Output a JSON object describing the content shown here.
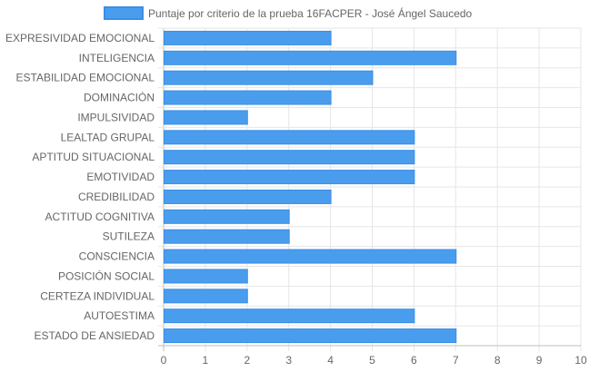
{
  "chart_data": {
    "type": "bar",
    "orientation": "horizontal",
    "legend": {
      "position": "top",
      "label": "Puntaje por criterio de la prueba 16FACPER - José Ángel Saucedo"
    },
    "categories": [
      "EXPRESIVIDAD EMOCIONAL",
      "INTELIGENCIA",
      "ESTABILIDAD EMOCIONAL",
      "DOMINACIÓN",
      "IMPULSIVIDAD",
      "LEALTAD GRUPAL",
      "APTITUD SITUACIONAL",
      "EMOTIVIDAD",
      "CREDIBILIDAD",
      "ACTITUD COGNITIVA",
      "SUTILEZA",
      "CONSCIENCIA",
      "POSICIÓN SOCIAL",
      "CERTEZA INDIVIDUAL",
      "AUTOESTIMA",
      "ESTADO DE ANSIEDAD"
    ],
    "series": [
      {
        "name": "Puntaje por criterio de la prueba 16FACPER - José Ángel Saucedo",
        "values": [
          4,
          7,
          5,
          4,
          2,
          6,
          6,
          6,
          4,
          3,
          3,
          7,
          2,
          2,
          6,
          7
        ]
      }
    ],
    "xlim": [
      0,
      10
    ],
    "xticks": [
      "0",
      "1",
      "2",
      "3",
      "4",
      "5",
      "6",
      "7",
      "8",
      "9",
      "10"
    ],
    "grid": true,
    "colors": {
      "bar_fill": "#4a9ded",
      "bar_border": "#3a8ee6",
      "grid": "#e6e6e6",
      "axis": "#bdbdbd",
      "text": "#666666"
    }
  }
}
